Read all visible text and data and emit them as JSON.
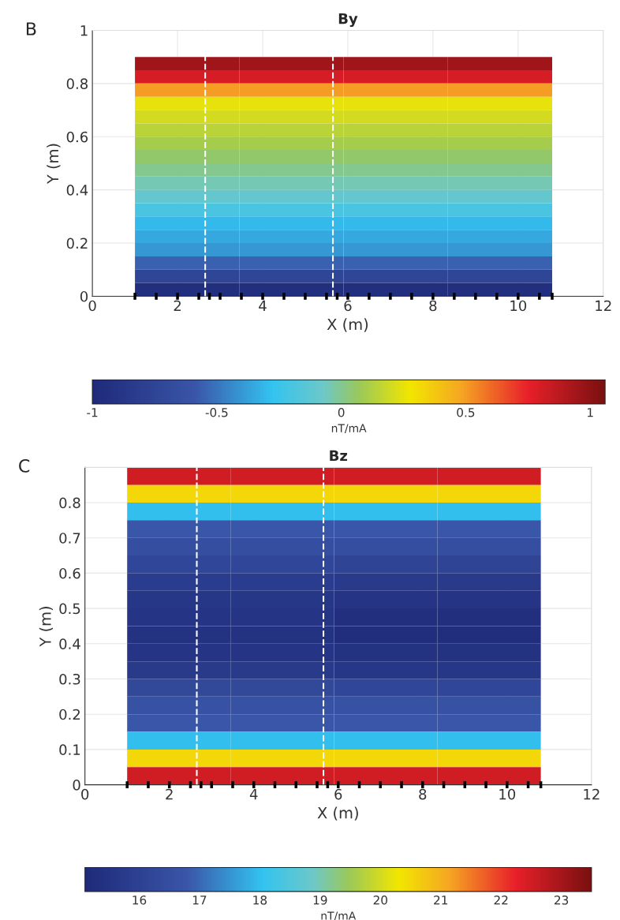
{
  "chart_data": [
    {
      "type": "heatmap",
      "title": "By",
      "xlabel": "X (m)",
      "ylabel": "Y (m)",
      "clabel": "nT/mA",
      "annotations": [
        "B"
      ],
      "x": [
        2.225,
        4.675,
        7.125,
        9.575
      ],
      "y": [
        0.875,
        0.825,
        0.775,
        0.725,
        0.675,
        0.625,
        0.575,
        0.525,
        0.475,
        0.425,
        0.375,
        0.325,
        0.275,
        0.225,
        0.175,
        0.125,
        0.075,
        0.025
      ],
      "cells": [
        [
          0.95,
          0.95,
          0.95,
          0.95
        ],
        [
          0.8,
          0.8,
          0.8,
          0.8
        ],
        [
          0.5,
          0.5,
          0.5,
          0.5
        ],
        [
          0.25,
          0.25,
          0.25,
          0.25
        ],
        [
          0.2,
          0.2,
          0.2,
          0.2
        ],
        [
          0.15,
          0.15,
          0.15,
          0.15
        ],
        [
          0.1,
          0.1,
          0.1,
          0.1
        ],
        [
          0.05,
          0.05,
          0.05,
          0.05
        ],
        [
          0.0,
          0.0,
          0.0,
          0.0
        ],
        [
          -0.05,
          -0.05,
          -0.05,
          -0.05
        ],
        [
          -0.1,
          -0.1,
          -0.1,
          -0.1
        ],
        [
          -0.2,
          -0.2,
          -0.2,
          -0.2
        ],
        [
          -0.3,
          -0.3,
          -0.3,
          -0.3
        ],
        [
          -0.35,
          -0.35,
          -0.35,
          -0.35
        ],
        [
          -0.4,
          -0.4,
          -0.4,
          -0.4
        ],
        [
          -0.55,
          -0.55,
          -0.55,
          -0.55
        ],
        [
          -0.75,
          -0.75,
          -0.75,
          -0.75
        ],
        [
          -0.95,
          -0.95,
          -0.95,
          -0.95
        ]
      ],
      "clim": [
        -1,
        1.06
      ],
      "cticks": [
        -1,
        -0.5,
        0,
        0.5,
        1
      ],
      "xlim": [
        0,
        12
      ],
      "xticks": [
        0,
        2,
        4,
        6,
        8,
        10,
        12
      ],
      "ylim": [
        0,
        1
      ],
      "yticks": [
        0,
        0.2,
        0.4,
        0.6,
        0.8,
        1
      ],
      "grid": true,
      "ref_lines": [
        {
          "axis": "x",
          "value": 2.65,
          "color": "#ffffff",
          "line_style": "dashed"
        },
        {
          "axis": "x",
          "value": 5.65,
          "color": "#ffffff",
          "line_style": "dashed"
        }
      ],
      "series": [
        {
          "type": "scatter",
          "color": "#000000",
          "x": [
            1,
            1.5,
            2,
            2.5,
            2.75,
            3,
            3.5,
            4,
            4.5,
            5,
            5.5,
            5.75,
            6,
            6.5,
            7,
            7.5,
            8,
            8.5,
            9,
            9.5,
            10,
            10.5,
            10.8
          ],
          "values": [
            0,
            0,
            0,
            0,
            0,
            0,
            0,
            0,
            0,
            0,
            0,
            0,
            0,
            0,
            0,
            0,
            0,
            0,
            0,
            0,
            0,
            0,
            0
          ]
        }
      ]
    },
    {
      "type": "heatmap",
      "title": "Bz",
      "xlabel": "X (m)",
      "ylabel": "Y (m)",
      "clabel": "nT/mA",
      "annotations": [
        "C"
      ],
      "x": [
        2.225,
        4.675,
        7.125,
        9.575
      ],
      "y": [
        0.875,
        0.825,
        0.775,
        0.725,
        0.675,
        0.625,
        0.575,
        0.525,
        0.475,
        0.425,
        0.375,
        0.325,
        0.275,
        0.225,
        0.175,
        0.125,
        0.075,
        0.025
      ],
      "cells": [
        [
          22.5,
          22.5,
          22.5,
          22.5
        ],
        [
          20.5,
          20.5,
          20.5,
          20.5
        ],
        [
          18,
          18,
          18,
          18
        ],
        [
          16.8,
          16.8,
          16.8,
          16.8
        ],
        [
          16.5,
          16.5,
          16.5,
          16.5
        ],
        [
          16.2,
          16.2,
          16.1,
          16.1
        ],
        [
          15.8,
          15.8,
          15.7,
          15.7
        ],
        [
          15.6,
          15.6,
          15.5,
          15.5
        ],
        [
          15.5,
          15.5,
          15.3,
          15.3
        ],
        [
          15.4,
          15.4,
          15.2,
          15.2
        ],
        [
          15.5,
          15.5,
          15.4,
          15.4
        ],
        [
          15.7,
          15.7,
          15.6,
          15.6
        ],
        [
          16.3,
          16.3,
          16.2,
          16.2
        ],
        [
          16.6,
          16.6,
          16.6,
          16.6
        ],
        [
          16.8,
          16.8,
          16.8,
          16.8
        ],
        [
          18,
          18,
          18,
          18
        ],
        [
          20.5,
          20.5,
          20.5,
          20.5
        ],
        [
          22.5,
          22.5,
          22.5,
          22.5
        ]
      ],
      "clim": [
        15.1,
        23.5
      ],
      "cticks": [
        16,
        17,
        18,
        19,
        20,
        21,
        22,
        23
      ],
      "xlim": [
        0,
        12
      ],
      "xticks": [
        0,
        2,
        4,
        6,
        8,
        10,
        12
      ],
      "ylim": [
        0,
        0.9
      ],
      "yticks": [
        0,
        0.1,
        0.2,
        0.3,
        0.4,
        0.5,
        0.6,
        0.7,
        0.8
      ],
      "grid": true,
      "ref_lines": [
        {
          "axis": "x",
          "value": 2.65,
          "color": "#ffffff",
          "line_style": "dashed"
        },
        {
          "axis": "x",
          "value": 5.65,
          "color": "#ffffff",
          "line_style": "dashed"
        }
      ],
      "series": [
        {
          "type": "scatter",
          "color": "#000000",
          "x": [
            1,
            1.5,
            2,
            2.5,
            2.75,
            3,
            3.5,
            4,
            4.5,
            5,
            5.5,
            5.75,
            6,
            6.5,
            7,
            7.5,
            8,
            8.5,
            9,
            9.5,
            10,
            10.5,
            10.8
          ],
          "values": [
            0,
            0,
            0,
            0,
            0,
            0,
            0,
            0,
            0,
            0,
            0,
            0,
            0,
            0,
            0,
            0,
            0,
            0,
            0,
            0,
            0,
            0,
            0
          ]
        }
      ]
    }
  ]
}
